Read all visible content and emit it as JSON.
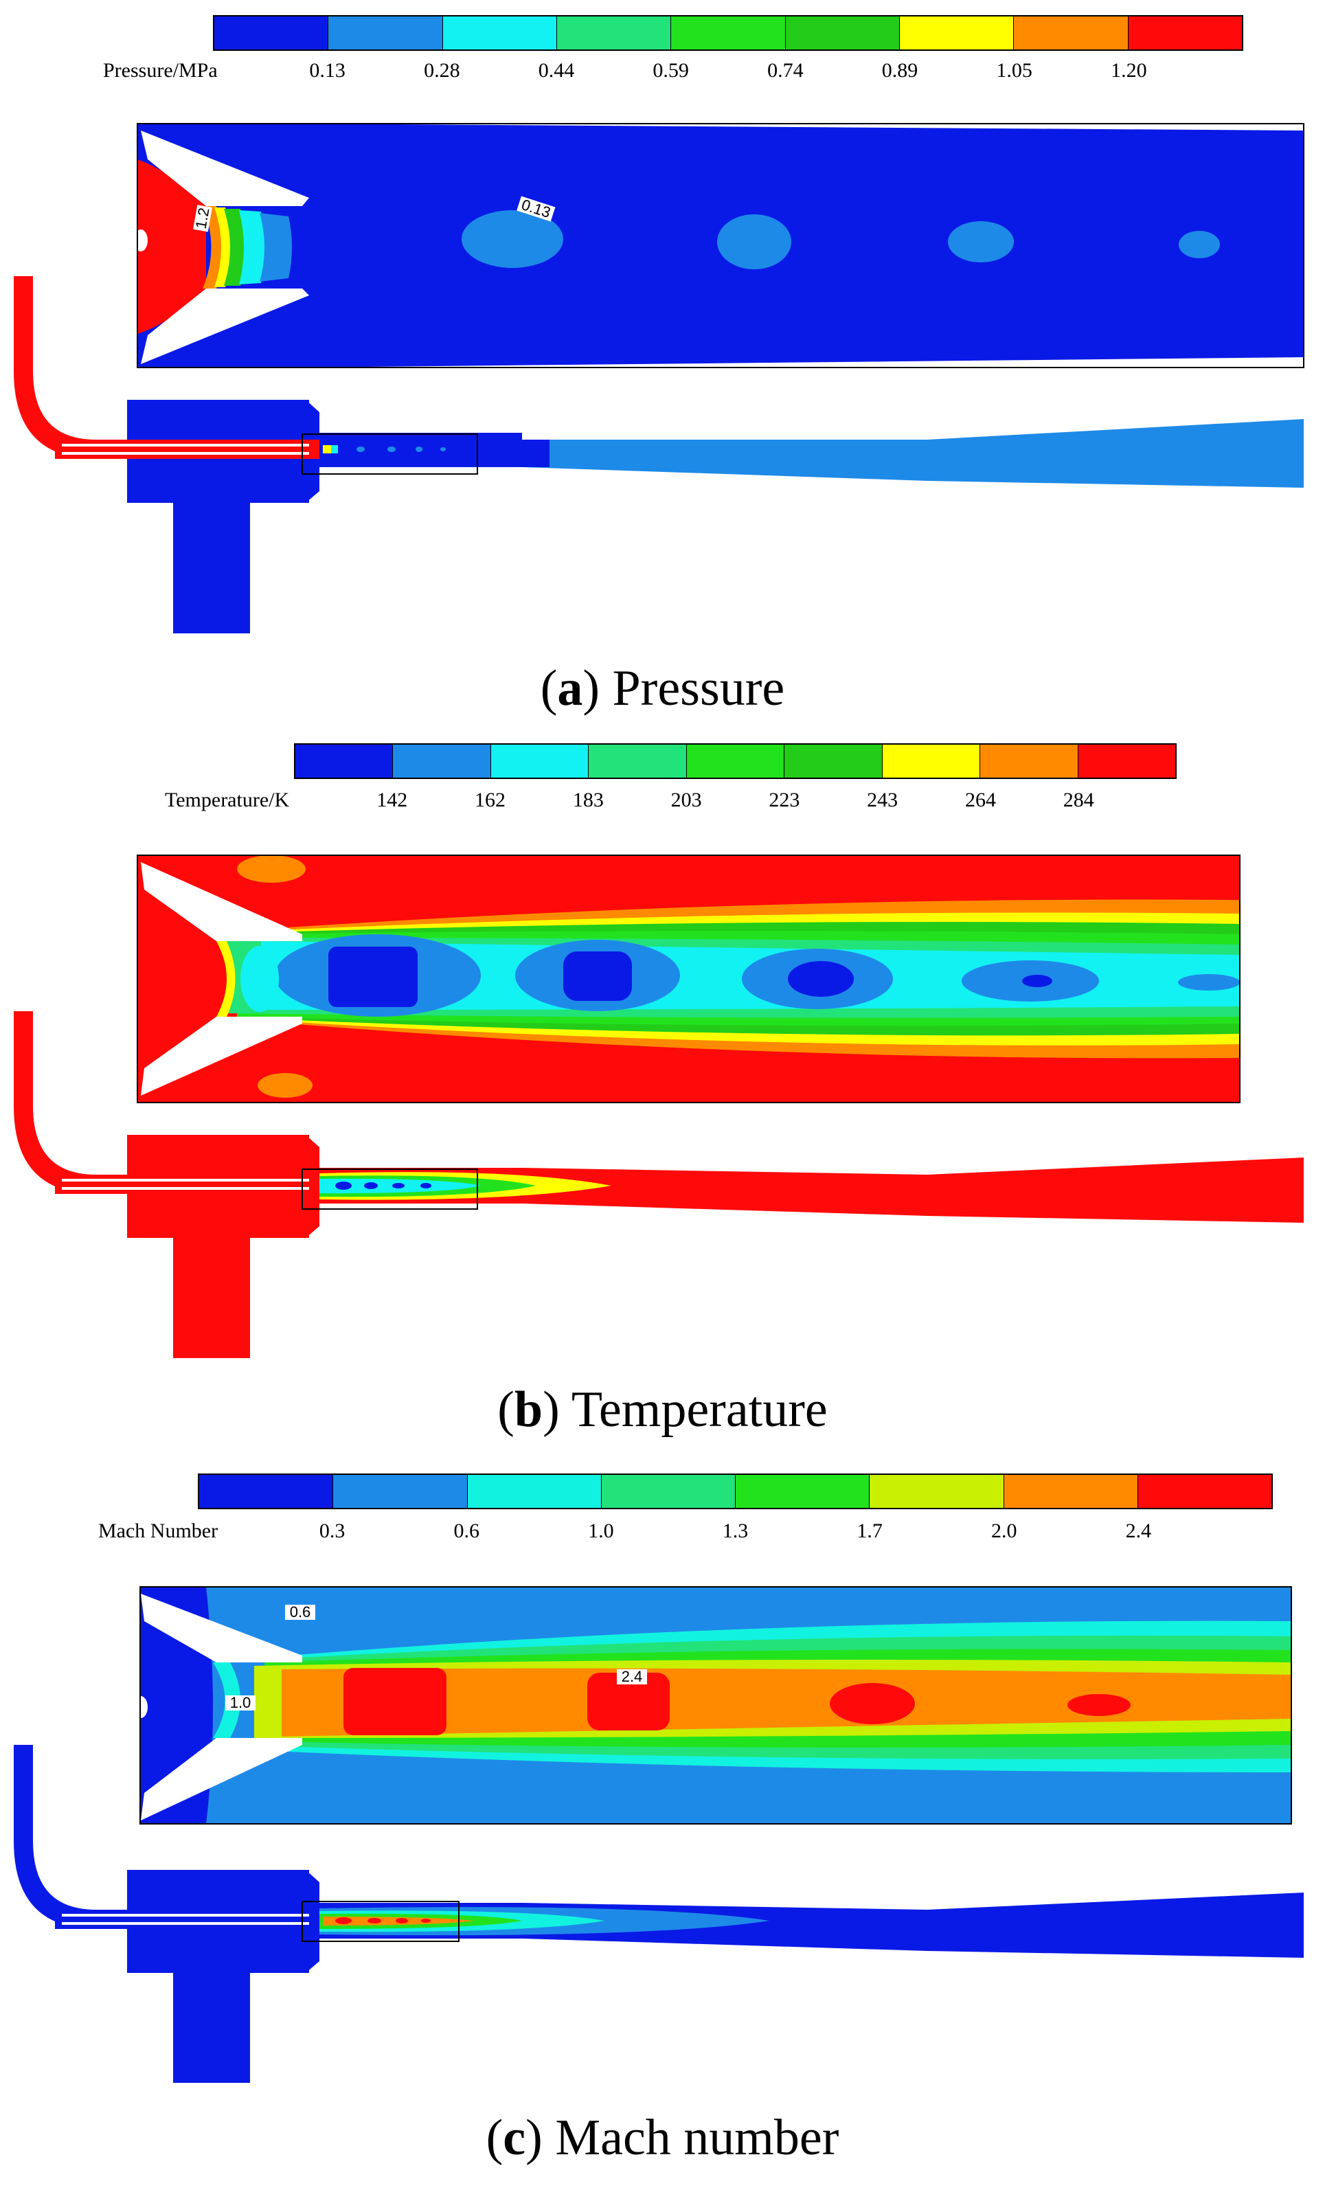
{
  "panels": [
    {
      "id": "pressure",
      "legend": {
        "title": "Pressure/MPa",
        "ticks": [
          "0.13",
          "0.28",
          "0.44",
          "0.59",
          "0.74",
          "0.89",
          "1.05",
          "1.20"
        ],
        "colors": [
          "#0a1ae6",
          "#1e8ae8",
          "#12f2f2",
          "#22e27a",
          "#22e21e",
          "#22cc18",
          "#ffff00",
          "#ff8a00",
          "#ff0a0a"
        ]
      },
      "contour_labels": [
        "1.2",
        "0.13"
      ],
      "caption_letter": "a",
      "caption_text": "Pressure"
    },
    {
      "id": "temperature",
      "legend": {
        "title": "Temperature/K",
        "ticks": [
          "142",
          "162",
          "183",
          "203",
          "223",
          "243",
          "264",
          "284"
        ],
        "colors": [
          "#0a1ae6",
          "#1e8ae8",
          "#12f2f2",
          "#22e27a",
          "#22e21e",
          "#22cc18",
          "#ffff00",
          "#ff8a00",
          "#ff0a0a"
        ]
      },
      "contour_labels": [],
      "caption_letter": "b",
      "caption_text": "Temperature"
    },
    {
      "id": "mach",
      "legend": {
        "title": "Mach Number",
        "ticks": [
          "0.3",
          "0.6",
          "1.0",
          "1.3",
          "1.7",
          "2.0",
          "2.4"
        ],
        "colors": [
          "#0a1ae6",
          "#1e8ae8",
          "#12f2e0",
          "#22e27a",
          "#22e21e",
          "#c8f000",
          "#ff8a00",
          "#ff0a0a"
        ]
      },
      "contour_labels": [
        "0.6",
        "1.0",
        "2.4"
      ],
      "caption_letter": "c",
      "caption_text": "Mach number"
    }
  ]
}
